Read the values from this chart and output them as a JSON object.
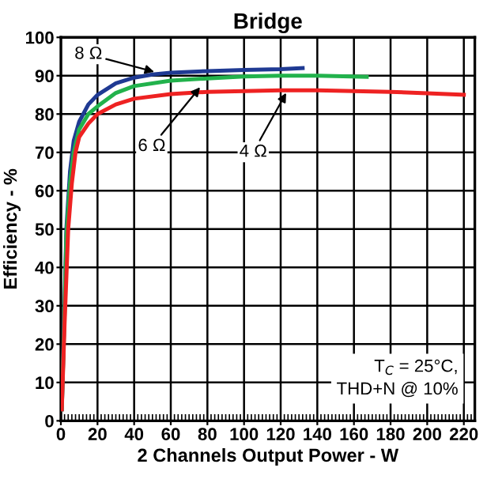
{
  "chart_data": {
    "type": "line",
    "title": "Bridge",
    "xlabel": "2 Channels Output Power - W",
    "ylabel": "Efficiency - %",
    "xlim": [
      0,
      226
    ],
    "xticks": [
      0,
      20,
      40,
      60,
      80,
      100,
      120,
      140,
      160,
      180,
      200,
      220
    ],
    "ylim": [
      0,
      100
    ],
    "yticks": [
      0,
      10,
      20,
      30,
      40,
      50,
      60,
      70,
      80,
      90,
      100
    ],
    "grid": true,
    "legend": false,
    "line_style": "solid",
    "marker": "none",
    "series": [
      {
        "color": "#1f3a93",
        "x": [
          0.5,
          2,
          3,
          5,
          7,
          10,
          15,
          20,
          30,
          40,
          50,
          60,
          80,
          100,
          120,
          132
        ],
        "values": [
          3,
          30,
          50,
          65,
          73,
          78,
          82.5,
          85,
          88,
          89.5,
          90.3,
          90.8,
          91.2,
          91.5,
          91.7,
          92
        ]
      },
      {
        "color": "#22b24c",
        "x": [
          0.5,
          2,
          3,
          5,
          7,
          10,
          15,
          20,
          30,
          40,
          60,
          80,
          100,
          120,
          140,
          167
        ],
        "values": [
          3,
          28,
          48,
          62,
          70,
          76,
          80,
          82,
          85.5,
          87.3,
          88.7,
          89.3,
          89.8,
          90,
          90,
          89.7
        ]
      },
      {
        "color": "#ee2222",
        "x": [
          0.5,
          2,
          4,
          6,
          8,
          10,
          15,
          20,
          30,
          40,
          60,
          80,
          100,
          120,
          140,
          160,
          180,
          200,
          220
        ],
        "values": [
          3,
          25,
          50,
          62,
          70,
          74,
          77.5,
          80,
          82.5,
          84,
          85.2,
          85.8,
          86,
          86.2,
          86.2,
          86,
          85.8,
          85.4,
          85
        ]
      }
    ],
    "annotations": [
      {
        "text": "8 Ω",
        "x": 51,
        "y": 91
      },
      {
        "text": "6 Ω",
        "x": 76,
        "y": 87
      },
      {
        "text": "4 Ω",
        "x": 123,
        "y": 85.5
      },
      "T$_{C}$ = 25°C,\nTHD+N @ 10%"
    ]
  }
}
